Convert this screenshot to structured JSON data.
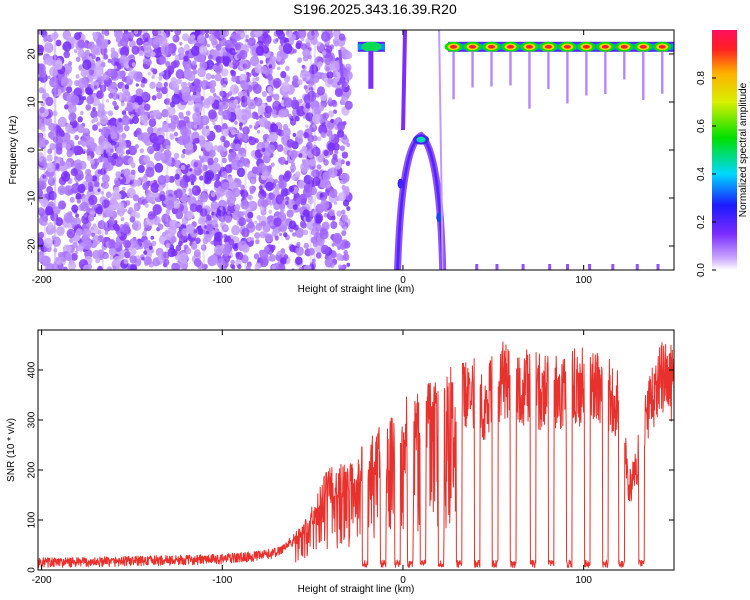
{
  "figure": {
    "title": "S196.2025.343.16.39.R20"
  },
  "colors": {
    "snr_line": "#e8302c",
    "axis": "#000000",
    "spectrogram_low": "#7b2cff",
    "spectrogram_high": "#ff2020"
  },
  "chart_data": [
    {
      "type": "heatmap",
      "title": "S196.2025.343.16.39.R20",
      "xlabel": "Height of straight line (km)",
      "ylabel": "Frequency (Hz)",
      "xlim": [
        -202,
        150
      ],
      "ylim": [
        -25,
        25
      ],
      "xticks": [
        -200,
        -100,
        0,
        100
      ],
      "yticks": [
        -20,
        -10,
        0,
        10,
        20
      ],
      "xtick_labels": [
        "-200",
        "-100",
        "0",
        "100"
      ],
      "ytick_labels": [
        "-20",
        "-10",
        "0",
        "10",
        "20"
      ],
      "colorbar": {
        "label": "Normalized spectral amplitude",
        "range": [
          0,
          1
        ],
        "ticks": [
          0.0,
          0.2,
          0.4,
          0.6,
          0.8
        ],
        "tick_labels": [
          "0.0",
          "0.2",
          "0.4",
          "0.6",
          "0.8"
        ],
        "colormap": "rainbow (purple → blue → cyan → green → yellow → red)"
      },
      "features": [
        {
          "kind": "noise",
          "x_range": [
            -202,
            -30
          ],
          "y_range": [
            -25,
            25
          ],
          "amplitude": 0.1
        },
        {
          "kind": "carrier_line",
          "x_range": [
            25,
            150
          ],
          "frequency": 21.5,
          "peak_amplitude": 0.95,
          "peak_spacing": 10.5
        },
        {
          "kind": "carrier_line",
          "x_range": [
            -25,
            -10
          ],
          "frequency": 21.5,
          "peak_amplitude": 0.5
        },
        {
          "kind": "arch",
          "apex": [
            10,
            3
          ],
          "ends": [
            [
              -3,
              -25
            ],
            [
              22,
              -25
            ]
          ],
          "peak_amplitude": 0.3
        }
      ]
    },
    {
      "type": "line",
      "xlabel": "Height of straight line (km)",
      "ylabel": "SNR (10 * v/v)",
      "xlim": [
        -202,
        150
      ],
      "ylim": [
        0,
        480
      ],
      "xticks": [
        -200,
        -100,
        0,
        100
      ],
      "yticks": [
        0,
        100,
        200,
        300,
        400
      ],
      "xtick_labels": [
        "-200",
        "-100",
        "0",
        "100"
      ],
      "ytick_labels": [
        "0",
        "100",
        "200",
        "300",
        "400"
      ],
      "series": [
        {
          "x": [
            -202,
            -180,
            -150,
            -120,
            -100,
            -90,
            -80,
            -70,
            -60,
            -55,
            -50,
            -45,
            -40,
            -35,
            -30,
            -25,
            -20,
            -15,
            -10,
            -5,
            0,
            5,
            10,
            15,
            20,
            25,
            30,
            35,
            40,
            45,
            50,
            55,
            60,
            65,
            70,
            75,
            80,
            85,
            90,
            95,
            100,
            105,
            110,
            115,
            120,
            125,
            130,
            135,
            140,
            145,
            150
          ],
          "y": [
            15,
            15,
            18,
            20,
            22,
            25,
            28,
            35,
            60,
            80,
            110,
            150,
            170,
            175,
            180,
            200,
            210,
            230,
            240,
            260,
            280,
            300,
            310,
            315,
            320,
            340,
            360,
            365,
            345,
            330,
            360,
            380,
            375,
            360,
            370,
            355,
            365,
            350,
            365,
            365,
            370,
            360,
            360,
            350,
            330,
            160,
            220,
            300,
            370,
            380,
            380
          ],
          "dropouts": [
            -21,
            -11,
            -3,
            4,
            11,
            21,
            31,
            41,
            51,
            61,
            72,
            82,
            92,
            102,
            112,
            121,
            132
          ]
        }
      ]
    }
  ]
}
